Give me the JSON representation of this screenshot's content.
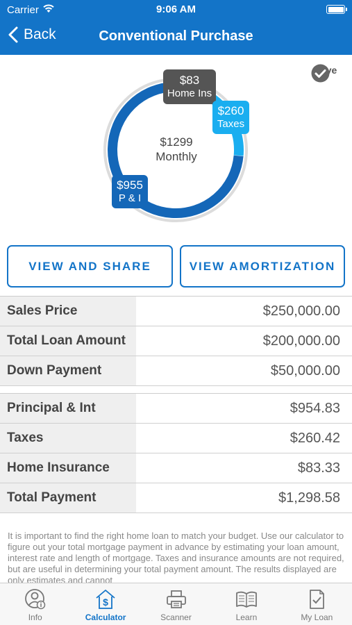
{
  "status_bar": {
    "carrier": "Carrier",
    "time": "9:06 AM"
  },
  "nav": {
    "back_label": "Back",
    "title": "Conventional Purchase"
  },
  "chart": {
    "center_amount": "$1299",
    "center_label": "Monthly",
    "save_label": "Save",
    "segments": [
      {
        "name": "Home Ins",
        "value_label": "$83",
        "value": 83.33,
        "color": "#555555"
      },
      {
        "name": "Taxes",
        "value_label": "$260",
        "value": 260.42,
        "color": "#1aaef0"
      },
      {
        "name": "P & I",
        "value_label": "$955",
        "value": 954.83,
        "color": "#1467b8"
      }
    ]
  },
  "buttons": {
    "share": "VIEW AND SHARE",
    "amortization": "VIEW AMORTIZATION"
  },
  "loan_rows": [
    {
      "label": "Sales Price",
      "value": "$250,000.00"
    },
    {
      "label": "Total Loan Amount",
      "value": "$200,000.00"
    },
    {
      "label": "Down Payment",
      "value": "$50,000.00"
    }
  ],
  "payment_rows": [
    {
      "label": "Principal & Int",
      "value": "$954.83"
    },
    {
      "label": "Taxes",
      "value": "$260.42"
    },
    {
      "label": "Home Insurance",
      "value": "$83.33"
    },
    {
      "label": "Total Payment",
      "value": "$1,298.58"
    }
  ],
  "disclaimer": "It is important to find the right home loan to match your budget. Use our calculator to figure out your total mortgage payment in advance by estimating your loan amount, interest rate and length of mortgage. Taxes and insurance amounts are not required, but are useful in determining your total payment amount.  The results displayed are only estimates and cannot",
  "tabs": [
    {
      "label": "Info",
      "icon": "info-person-icon",
      "active": false
    },
    {
      "label": "Calculator",
      "icon": "calculator-house-icon",
      "active": true
    },
    {
      "label": "Scanner",
      "icon": "printer-icon",
      "active": false
    },
    {
      "label": "Learn",
      "icon": "book-icon",
      "active": false
    },
    {
      "label": "My Loan",
      "icon": "document-check-icon",
      "active": false
    }
  ],
  "colors": {
    "brand_blue": "#1374c8",
    "light_blue": "#1aaef0",
    "dark_blue": "#1467b8",
    "gray": "#555555"
  }
}
